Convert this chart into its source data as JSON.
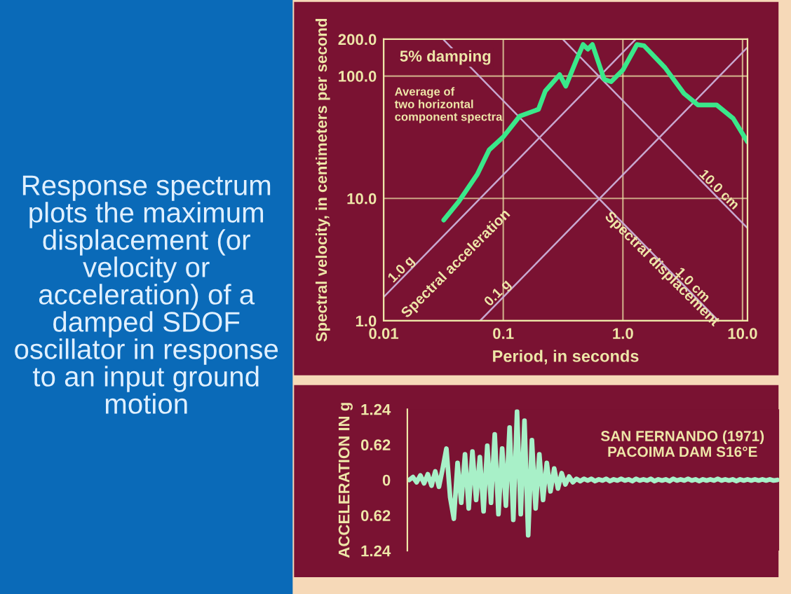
{
  "chart_data": [
    {
      "type": "other",
      "annotations": [
        "Response spectrum plots the maximum displacement (or velocity or acceleration) of a damped SDOF oscillator in response to an input ground motion"
      ]
    },
    {
      "type": "line",
      "xlabel": "Period, in seconds",
      "ylabel": "Spectral velocity, in centimeters per second",
      "log": "xy",
      "grid": true,
      "legend": false,
      "xlim": [
        0.01,
        11
      ],
      "ylim": [
        1,
        200
      ],
      "xticks": [
        0.01,
        0.1,
        {
          "value": 1,
          "label": "1.0"
        },
        {
          "value": 10,
          "label": "10.0"
        }
      ],
      "yticks": [
        {
          "value": 1,
          "label": "1.0"
        },
        {
          "value": 10,
          "label": "10.0"
        },
        {
          "value": 100,
          "label": "100.0"
        },
        {
          "value": 200,
          "label": "200.0"
        }
      ],
      "annotations": [
        "5% damping",
        "Average of two horizontal component spectra",
        "Spectral acceleration",
        "Spectral displacement"
      ],
      "series": [
        {
          "name": "1.0 g",
          "color": "#c8a8d0",
          "x": [
            0.01,
            1.28
          ],
          "values": [
            1.56,
            200
          ]
        },
        {
          "name": "0.1 g",
          "color": "#c8a8d0",
          "x": [
            0.064,
            11
          ],
          "values": [
            1.0,
            171.6
          ]
        },
        {
          "name": "10.0 cm",
          "color": "#c8a8d0",
          "x": [
            0.314,
            11
          ],
          "values": [
            200,
            5.71
          ]
        },
        {
          "name": "1.0 cm",
          "color": "#c8a8d0",
          "x": [
            0.0314,
            6.28
          ],
          "values": [
            200,
            1.0
          ]
        },
        {
          "color": "#3ae88a",
          "x": [
            0.0318,
            0.0424,
            0.0608,
            0.0762,
            0.1,
            0.137,
            0.197,
            0.225,
            0.296,
            0.333,
            0.406,
            0.465,
            0.509,
            0.556,
            0.697,
            0.797,
            1.0,
            1.31,
            1.5,
            2.25,
            3.24,
            4.24,
            6.08,
            8.36,
            11
          ],
          "values": [
            6.65,
            9.4,
            15.8,
            24.9,
            31.8,
            47,
            53.5,
            75.7,
            102.6,
            82.6,
            133,
            181,
            166,
            181,
            94,
            90,
            112,
            181,
            177,
            117,
            72,
            58,
            58,
            45,
            29
          ]
        }
      ]
    },
    {
      "type": "line",
      "ylabel": "ACCELERATION IN g",
      "tick_labels": "y",
      "ylim": [
        -1.24,
        1.24
      ],
      "yticks": [
        {
          "value": -1.24,
          "label": "1.24"
        },
        {
          "value": -0.62,
          "label": "0.62"
        },
        0,
        0.62,
        1.24
      ],
      "annotations": [
        "SAN FERNANDO (1971)\nPACOIMA DAM S16°E"
      ],
      "categories": [
        null,
        null,
        null,
        null,
        null,
        null,
        null,
        null,
        null,
        null,
        null,
        null,
        null,
        null,
        null,
        null,
        null,
        null,
        null,
        null,
        null,
        null,
        null,
        null,
        null,
        null,
        null,
        null,
        null,
        null,
        null,
        null,
        null,
        null,
        null,
        null,
        null,
        null,
        null,
        null,
        null,
        null,
        null,
        null,
        null,
        null,
        null,
        null,
        null,
        null,
        null,
        null,
        null,
        null,
        null,
        null,
        null,
        null,
        null,
        null,
        null,
        null,
        null,
        null,
        null,
        null,
        null,
        null,
        null,
        null,
        null,
        null,
        null,
        null,
        null,
        null,
        null,
        null,
        null,
        null,
        null,
        null,
        null,
        null,
        null,
        null,
        null,
        null,
        null,
        null,
        null,
        null,
        null,
        null,
        null,
        null,
        null,
        null,
        null,
        null
      ],
      "series": [
        {
          "color": "#a8f0c8",
          "values": [
            0,
            0.05,
            -0.04,
            0.08,
            -0.06,
            0.1,
            -0.1,
            0.15,
            -0.12,
            0.2,
            0.55,
            -0.3,
            -0.68,
            0.3,
            -0.4,
            0.45,
            -0.5,
            0.5,
            -0.35,
            0.4,
            -0.55,
            0.6,
            -0.4,
            0.8,
            -0.6,
            0.55,
            -0.45,
            0.92,
            -0.7,
            1.2,
            -0.6,
            1.04,
            -0.97,
            0.7,
            -0.5,
            0.45,
            -0.35,
            0.3,
            -0.2,
            0.2,
            -0.15,
            0.12,
            -0.08,
            0.06,
            -0.04,
            0.02,
            -0.02,
            0.02,
            -0.01,
            0.02,
            -0.02,
            0.01,
            -0.01,
            0.02,
            -0.02,
            0.01,
            -0.01,
            0.02,
            -0.01,
            0.01,
            -0.02,
            0.02,
            -0.01,
            0.01,
            -0.01,
            0.02,
            -0.02,
            0.01,
            -0.01,
            0.01,
            -0.02,
            0.02,
            -0.01,
            0.01,
            -0.01,
            0.02,
            -0.01,
            0.01,
            -0.02,
            0.01,
            -0.01,
            0.01,
            -0.01,
            0.02,
            -0.01,
            0.01,
            -0.01,
            0.01,
            -0.02,
            0.01,
            -0.01,
            0.01,
            -0.01,
            0.01,
            -0.01,
            0.01,
            -0.01,
            0.01,
            -0.01,
            0
          ]
        }
      ]
    }
  ]
}
